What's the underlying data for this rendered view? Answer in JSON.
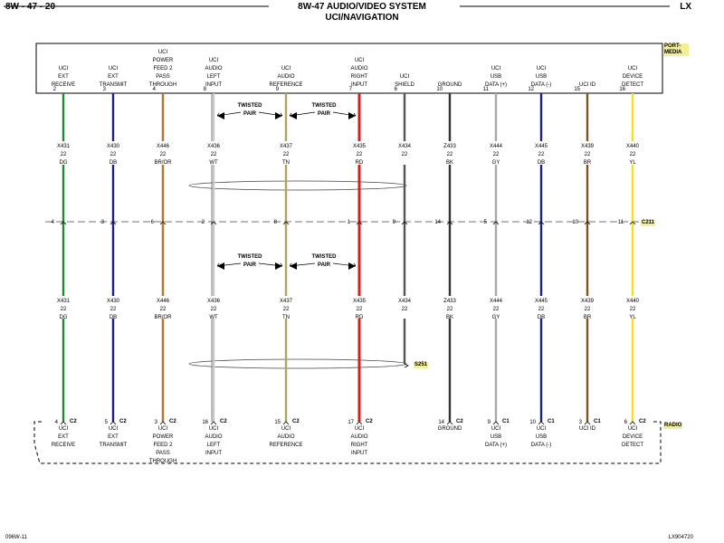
{
  "header": {
    "page_id": "8W - 47 - 20",
    "title": "8W-47 AUDIO/VIDEO SYSTEM",
    "subtitle": "UCI/NAVIGATION",
    "model": "LX"
  },
  "components": {
    "top": "PORT-MEDIA",
    "bottom": "RADIO",
    "connector_mid": "C211",
    "splice": "S251"
  },
  "twisted_pair_label": [
    "TWISTED",
    "PAIR"
  ],
  "gauge": "22",
  "circuits": [
    {
      "top_label": [
        "UCI",
        "EXT",
        "RECEIVE"
      ],
      "top_pin": "2",
      "wire": "X431",
      "color": "DG",
      "c211_pin": "4",
      "bottom_pin": "4",
      "bottom_conn": "C2",
      "bottom_label": [
        "UCI",
        "EXT",
        "RECEIVE"
      ],
      "hex": "#1e8c2e"
    },
    {
      "top_label": [
        "UCI",
        "EXT",
        "TRANSMIT"
      ],
      "top_pin": "3",
      "wire": "X430",
      "color": "DB",
      "c211_pin": "3",
      "bottom_pin": "5",
      "bottom_conn": "C2",
      "bottom_label": [
        "UCI",
        "EXT",
        "TRANSMIT"
      ],
      "hex": "#1a237e"
    },
    {
      "top_label": [
        "UCI",
        "POWER",
        "FEED 2",
        "PASS",
        "THROUGH"
      ],
      "top_pin": "4",
      "wire": "X446",
      "color": "BR/OR",
      "c211_pin": "6",
      "bottom_pin": "3",
      "bottom_conn": "C2",
      "bottom_label": [
        "UCI",
        "POWER",
        "FEED 2",
        "PASS",
        "THROUGH"
      ],
      "hex": "#8b5a2b",
      "hex2": "#e8a030"
    },
    {
      "top_label": [
        "UCI",
        "AUDIO",
        "LEFT",
        "INPUT"
      ],
      "top_pin": "8",
      "wire": "X436",
      "color": "WT",
      "c211_pin": "2",
      "bottom_pin": "16",
      "bottom_conn": "C2",
      "bottom_label": [
        "UCI",
        "AUDIO",
        "LEFT",
        "INPUT"
      ],
      "hex": "#c8c8c8"
    },
    {
      "top_label": [
        "UCI",
        "AUDIO",
        "REFERENCE"
      ],
      "top_pin": "9",
      "wire": "X437",
      "color": "TN",
      "c211_pin": "8",
      "bottom_pin": "15",
      "bottom_conn": "C2",
      "bottom_label": [
        "UCI",
        "AUDIO",
        "REFERENCE"
      ],
      "hex": "#b8a060"
    },
    {
      "top_label": [
        "UCI",
        "AUDIO",
        "RIGHT",
        "INPUT"
      ],
      "top_pin": "7",
      "wire": "X435",
      "color": "RD",
      "c211_pin": "1",
      "bottom_pin": "17",
      "bottom_conn": "C2",
      "bottom_label": [
        "UCI",
        "AUDIO",
        "RIGHT",
        "INPUT"
      ],
      "hex": "#d21f1f"
    },
    {
      "top_label": [
        "UCI",
        "SHIELD"
      ],
      "top_pin": "6",
      "wire": "X434",
      "color": "",
      "c211_pin": "9",
      "bottom_pin": "",
      "bottom_conn": "",
      "bottom_label": [],
      "hex": "#555555"
    },
    {
      "top_label": [
        "GROUND"
      ],
      "top_pin": "10",
      "wire": "Z433",
      "color": "BK",
      "c211_pin": "14",
      "bottom_pin": "14",
      "bottom_conn": "C2",
      "bottom_label": [
        "GROUND"
      ],
      "hex": "#333333"
    },
    {
      "top_label": [
        "UCI",
        "USB",
        "DATA (+)"
      ],
      "top_pin": "11",
      "wire": "X444",
      "color": "GY",
      "c211_pin": "5",
      "bottom_pin": "9",
      "bottom_conn": "C1",
      "bottom_label": [
        "UCI",
        "USB",
        "DATA (+)"
      ],
      "hex": "#a8a8a8"
    },
    {
      "top_label": [
        "UCI",
        "USB",
        "DATA (-)"
      ],
      "top_pin": "12",
      "wire": "X445",
      "color": "DB",
      "c211_pin": "12",
      "bottom_pin": "10",
      "bottom_conn": "C1",
      "bottom_label": [
        "UCI",
        "USB",
        "DATA (-)"
      ],
      "hex": "#1a237e"
    },
    {
      "top_label": [
        "UCI ID"
      ],
      "top_pin": "15",
      "wire": "X439",
      "color": "BR",
      "c211_pin": "10",
      "bottom_pin": "3",
      "bottom_conn": "C1",
      "bottom_label": [
        "UCI ID"
      ],
      "hex": "#7a5520"
    },
    {
      "top_label": [
        "UCI",
        "DEVICE",
        "DETECT"
      ],
      "top_pin": "16",
      "wire": "X440",
      "color": "YL",
      "c211_pin": "11",
      "bottom_pin": "6",
      "bottom_conn": "C2",
      "bottom_label": [
        "UCI",
        "DEVICE",
        "DETECT"
      ],
      "hex": "#f0e020"
    }
  ],
  "footer": {
    "left": "096W-11",
    "right": "LX904720"
  }
}
